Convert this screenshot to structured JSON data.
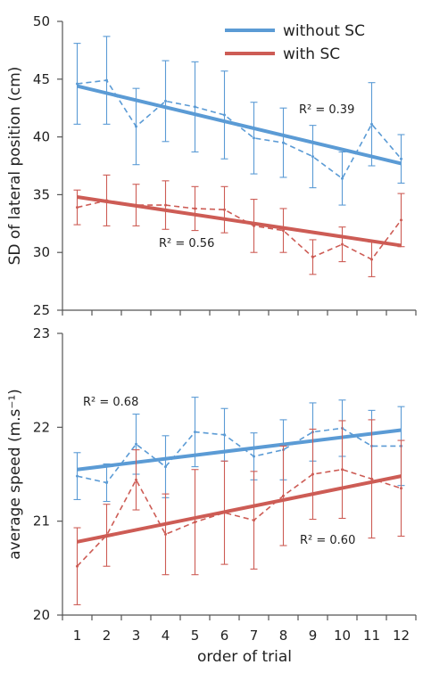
{
  "legend": {
    "without": "without SC",
    "with": "with SC"
  },
  "colors": {
    "without": "#5b9bd5",
    "with": "#cd5c55"
  },
  "chart_data": [
    {
      "type": "line",
      "panel": "top",
      "xlabel": "",
      "ylabel": "SD of lateral position (cm)",
      "ylim": [
        25,
        50
      ],
      "yticks": [
        25,
        30,
        35,
        40,
        45,
        50
      ],
      "xlim": [
        0.5,
        12.5
      ],
      "x": [
        1,
        2,
        3,
        4,
        5,
        6,
        7,
        8,
        9,
        10,
        11,
        12
      ],
      "grid": false,
      "legend_position": "top-right",
      "series": [
        {
          "key": "without",
          "name": "without SC",
          "values": [
            44.6,
            44.9,
            40.9,
            43.1,
            42.6,
            41.9,
            39.9,
            39.5,
            38.3,
            36.4,
            41.1,
            38.1
          ],
          "err": [
            3.5,
            3.8,
            3.3,
            3.5,
            3.9,
            3.8,
            3.1,
            3.0,
            2.7,
            2.3,
            3.6,
            2.1
          ],
          "trend": [
            44.4,
            37.7
          ],
          "r2": "R² = 0.39"
        },
        {
          "key": "with",
          "name": "with SC",
          "values": [
            33.9,
            34.5,
            34.1,
            34.1,
            33.8,
            33.7,
            32.3,
            31.9,
            29.6,
            30.7,
            29.4,
            32.8
          ],
          "err": [
            1.5,
            2.2,
            1.8,
            2.1,
            1.9,
            2.0,
            2.3,
            1.9,
            1.5,
            1.5,
            1.5,
            2.3
          ],
          "trend": [
            34.8,
            30.6
          ],
          "r2": "R² = 0.56"
        }
      ]
    },
    {
      "type": "line",
      "panel": "bottom",
      "xlabel": "order of trial",
      "ylabel": "average speed (m.s⁻¹)",
      "ylim": [
        20,
        23
      ],
      "yticks": [
        20,
        21,
        22,
        23
      ],
      "xlim": [
        0.5,
        12.5
      ],
      "x": [
        1,
        2,
        3,
        4,
        5,
        6,
        7,
        8,
        9,
        10,
        11,
        12
      ],
      "xticks": [
        "1",
        "2",
        "3",
        "4",
        "5",
        "6",
        "7",
        "8",
        "9",
        "10",
        "11",
        "12"
      ],
      "grid": false,
      "series": [
        {
          "key": "without",
          "name": "without SC",
          "values": [
            21.48,
            21.41,
            21.82,
            21.58,
            21.95,
            21.92,
            21.69,
            21.76,
            21.95,
            21.99,
            21.8,
            21.8
          ],
          "err": [
            0.25,
            0.2,
            0.32,
            0.33,
            0.37,
            0.28,
            0.25,
            0.32,
            0.31,
            0.3,
            0.38,
            0.42
          ],
          "trend": [
            21.55,
            21.97
          ],
          "r2": "R² = 0.68"
        },
        {
          "key": "with",
          "name": "with SC",
          "values": [
            20.52,
            20.85,
            21.44,
            20.86,
            20.99,
            21.09,
            21.01,
            21.27,
            21.5,
            21.55,
            21.45,
            21.35
          ],
          "err": [
            0.41,
            0.33,
            0.32,
            0.43,
            0.56,
            0.55,
            0.52,
            0.53,
            0.48,
            0.52,
            0.63,
            0.51
          ],
          "trend": [
            20.78,
            21.48
          ],
          "r2": "R² = 0.60"
        }
      ]
    }
  ]
}
